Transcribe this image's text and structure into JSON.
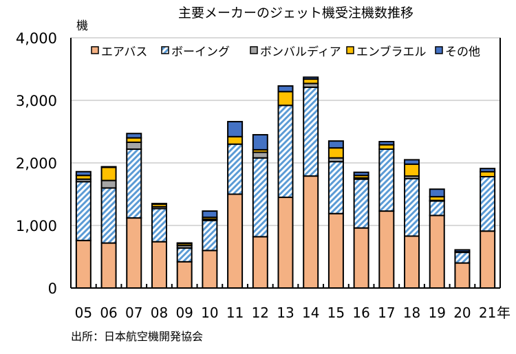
{
  "chart_data": {
    "type": "bar",
    "stacked": true,
    "title": "主要メーカーのジェット機受注機数推移",
    "ylabel": "機",
    "xlabel_suffix": "年",
    "source": "出所：日本航空機開発協会",
    "ylim": [
      0,
      4000
    ],
    "yticks": [
      "0",
      "1,000",
      "2,000",
      "3,000",
      "4,000"
    ],
    "ytick_values": [
      0,
      1000,
      2000,
      3000,
      4000
    ],
    "grid": true,
    "legend_placement": "top",
    "categories": [
      "05",
      "06",
      "07",
      "08",
      "09",
      "10",
      "11",
      "12",
      "13",
      "14",
      "15",
      "16",
      "17",
      "18",
      "19",
      "20",
      "21"
    ],
    "series": [
      {
        "name": "エアバス",
        "color": "#f4b183",
        "pattern": "solid",
        "values": [
          760,
          719,
          1120,
          740,
          420,
          600,
          1500,
          820,
          1450,
          1790,
          1190,
          960,
          1230,
          830,
          1160,
          400,
          910
        ]
      },
      {
        "name": "ボーイング",
        "color": "#5b9bd5",
        "pattern": "hatch",
        "values": [
          940,
          880,
          1100,
          530,
          220,
          480,
          800,
          1260,
          1470,
          1420,
          830,
          780,
          990,
          920,
          230,
          170,
          870
        ]
      },
      {
        "name": "ボンバルディア",
        "color": "#a5a5a5",
        "pattern": "solid",
        "values": [
          40,
          120,
          110,
          30,
          40,
          20,
          0,
          90,
          0,
          60,
          60,
          20,
          0,
          40,
          10,
          0,
          0
        ]
      },
      {
        "name": "エンブラエル",
        "color": "#ffc000",
        "pattern": "solid",
        "values": [
          60,
          210,
          70,
          40,
          30,
          30,
          120,
          40,
          220,
          70,
          160,
          40,
          70,
          190,
          60,
          10,
          80
        ]
      },
      {
        "name": "その他",
        "color": "#4472c4",
        "pattern": "solid",
        "values": [
          60,
          10,
          70,
          10,
          10,
          100,
          240,
          240,
          90,
          30,
          110,
          50,
          50,
          70,
          120,
          30,
          50
        ]
      }
    ]
  }
}
